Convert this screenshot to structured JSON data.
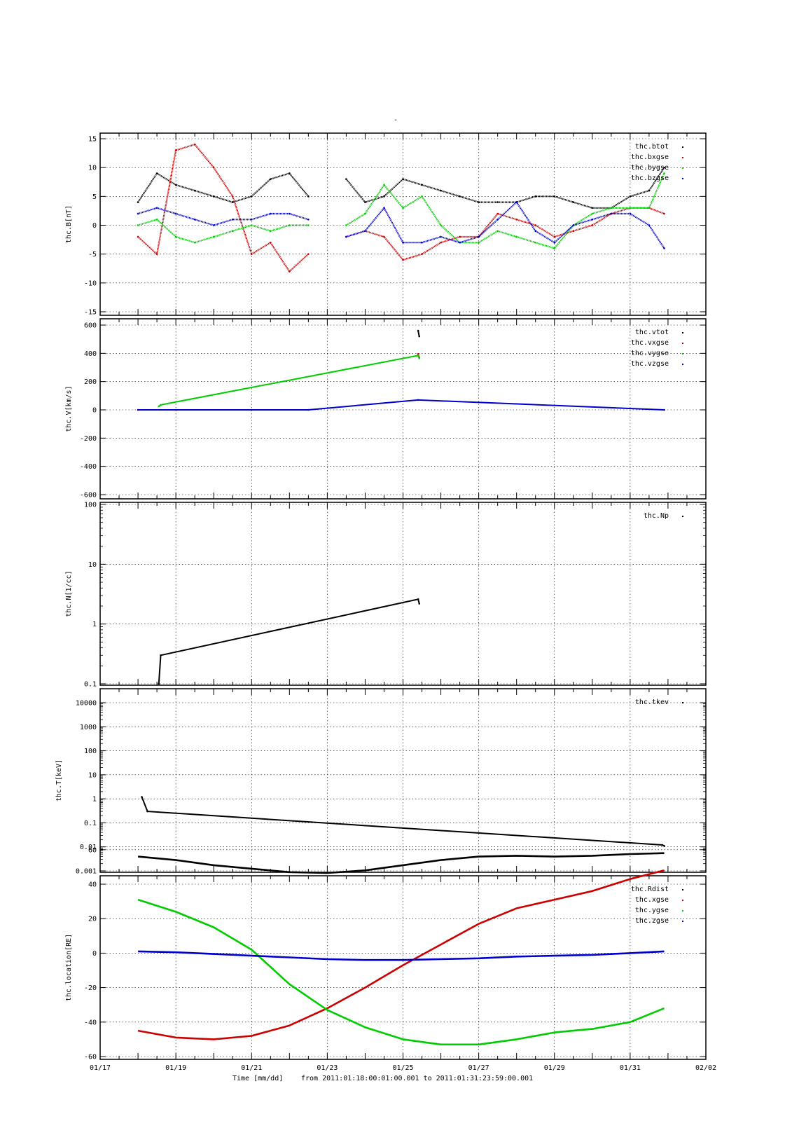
{
  "page_title": "-",
  "x_axis": {
    "label": "Time [mm/dd]",
    "range_text": "from 2011:01:18:00:01:00.001  to  2011:01:31:23:59:00.001",
    "ticks": [
      "01/17",
      "01/19",
      "01/21",
      "01/23",
      "01/25",
      "01/27",
      "01/29",
      "01/31",
      "02/02"
    ]
  },
  "colors": {
    "black": "#000000",
    "red": "#cc0000",
    "green": "#00cc00",
    "blue": "#0000cc",
    "grid": "#000000"
  },
  "chart_data": [
    {
      "type": "scatter",
      "ylabel": "thc.B[nT]",
      "ylim": [
        -15,
        16
      ],
      "yticks": [
        "15",
        "10",
        "5",
        "0",
        "-5",
        "-10",
        "-15"
      ],
      "grid": true,
      "legend_position": "top-right",
      "x_range": [
        "2011-01-17",
        "2011-02-02"
      ],
      "series": [
        {
          "name": "thc.btot",
          "color": "#000000",
          "x": [
            "01/18.0",
            "01/18.5",
            "01/19.0",
            "01/19.5",
            "01/20.0",
            "01/20.5",
            "01/21.0",
            "01/21.5",
            "01/22.0",
            "01/22.5",
            "01/23.0",
            "01/23.5",
            "01/24.0",
            "01/24.5",
            "01/25.0",
            "01/25.5",
            "01/26.0",
            "01/26.5",
            "01/27.0",
            "01/27.5",
            "01/28.0",
            "01/28.5",
            "01/29.0",
            "01/29.5",
            "01/30.0",
            "01/30.5",
            "01/31.0",
            "01/31.5",
            "01/31.9"
          ],
          "values": [
            4,
            9,
            7,
            6,
            5,
            4,
            5,
            8,
            9,
            5,
            null,
            8,
            4,
            5,
            8,
            7,
            6,
            5,
            4,
            4,
            4,
            5,
            5,
            4,
            3,
            3,
            5,
            6,
            10
          ]
        },
        {
          "name": "thc.bxgse",
          "color": "#cc0000",
          "x": [
            "01/18.0",
            "01/18.5",
            "01/19.0",
            "01/19.5",
            "01/20.0",
            "01/20.5",
            "01/21.0",
            "01/21.5",
            "01/22.0",
            "01/22.5",
            "01/23.0",
            "01/23.5",
            "01/24.0",
            "01/24.5",
            "01/25.0",
            "01/25.5",
            "01/26.0",
            "01/26.5",
            "01/27.0",
            "01/27.5",
            "01/28.0",
            "01/28.5",
            "01/29.0",
            "01/29.5",
            "01/30.0",
            "01/30.5",
            "01/31.0",
            "01/31.5",
            "01/31.9"
          ],
          "values": [
            -2,
            -5,
            13,
            14,
            10,
            5,
            -5,
            -3,
            -8,
            -5,
            null,
            -2,
            -1,
            -2,
            -6,
            -5,
            -3,
            -2,
            -2,
            2,
            1,
            0,
            -2,
            -1,
            0,
            2,
            3,
            3,
            2
          ]
        },
        {
          "name": "thc.bygse",
          "color": "#00cc00",
          "x": [
            "01/18.0",
            "01/18.5",
            "01/19.0",
            "01/19.5",
            "01/20.0",
            "01/20.5",
            "01/21.0",
            "01/21.5",
            "01/22.0",
            "01/22.5",
            "01/23.0",
            "01/23.5",
            "01/24.0",
            "01/24.5",
            "01/25.0",
            "01/25.5",
            "01/26.0",
            "01/26.5",
            "01/27.0",
            "01/27.5",
            "01/28.0",
            "01/28.5",
            "01/29.0",
            "01/29.5",
            "01/30.0",
            "01/30.5",
            "01/31.0",
            "01/31.5",
            "01/31.9"
          ],
          "values": [
            0,
            1,
            -2,
            -3,
            -2,
            -1,
            0,
            -1,
            0,
            0,
            null,
            0,
            2,
            7,
            3,
            5,
            0,
            -3,
            -3,
            -1,
            -2,
            -3,
            -4,
            0,
            2,
            3,
            3,
            3,
            9
          ]
        },
        {
          "name": "thc.bzgse",
          "color": "#0000cc",
          "x": [
            "01/18.0",
            "01/18.5",
            "01/19.0",
            "01/19.5",
            "01/20.0",
            "01/20.5",
            "01/21.0",
            "01/21.5",
            "01/22.0",
            "01/22.5",
            "01/23.0",
            "01/23.5",
            "01/24.0",
            "01/24.5",
            "01/25.0",
            "01/25.5",
            "01/26.0",
            "01/26.5",
            "01/27.0",
            "01/27.5",
            "01/28.0",
            "01/28.5",
            "01/29.0",
            "01/29.5",
            "01/30.0",
            "01/30.5",
            "01/31.0",
            "01/31.5",
            "01/31.9"
          ],
          "values": [
            2,
            3,
            2,
            1,
            0,
            1,
            1,
            2,
            2,
            1,
            null,
            -2,
            -1,
            3,
            -3,
            -3,
            -2,
            -3,
            -2,
            1,
            4,
            -1,
            -3,
            0,
            1,
            2,
            2,
            0,
            -4
          ]
        }
      ]
    },
    {
      "type": "scatter",
      "ylabel": "thc.V[km/s]",
      "ylim": [
        -600,
        600
      ],
      "yticks": [
        "600",
        "400",
        "200",
        "0",
        "-200",
        "-400",
        "-600"
      ],
      "grid": true,
      "legend_position": "top-right",
      "series": [
        {
          "name": "thc.vtot",
          "color": "#000000",
          "x": [
            "01/25.40",
            "01/25.43"
          ],
          "values": [
            560,
            520
          ]
        },
        {
          "name": "thc.vxgse",
          "color": "#cc0000",
          "x": [
            "01/25.40",
            "01/25.43"
          ],
          "values": [
            395,
            370
          ]
        },
        {
          "name": "thc.vygse",
          "color": "#00cc00",
          "x": [
            "01/18.55",
            "01/18.60",
            "01/25.40",
            "01/25.43"
          ],
          "values": [
            25,
            35,
            385,
            365
          ]
        },
        {
          "name": "thc.vzgse",
          "color": "#0000cc",
          "x": [
            "01/18.0",
            "01/22.5",
            "01/25.4",
            "01/31.9"
          ],
          "values": [
            0,
            0,
            70,
            0
          ]
        }
      ]
    },
    {
      "type": "scatter",
      "ylabel": "thc.N[1/cc]",
      "ylim": [
        0.1,
        100
      ],
      "scale": "log",
      "yticks": [
        "100",
        "10",
        "1",
        "0.1"
      ],
      "grid": true,
      "legend_position": "top-right",
      "series": [
        {
          "name": "thc.Np",
          "color": "#000000",
          "x": [
            "01/18.55",
            "01/18.60",
            "01/25.40",
            "01/25.43"
          ],
          "values": [
            0.1,
            0.3,
            2.6,
            2.2
          ]
        }
      ]
    },
    {
      "type": "scatter",
      "ylabel": "thc.T[keV]",
      "ylim": [
        0.001,
        20000
      ],
      "scale": "log",
      "yticks": [
        "10000",
        "1000",
        "100",
        "10",
        "1",
        "0.1",
        "0.01",
        "0.001"
      ],
      "grid": true,
      "legend_position": "top-right",
      "series": [
        {
          "name": "thc.tkev",
          "color": "#000000",
          "x": [
            "01/18.1",
            "01/18.25",
            "01/31.85",
            "01/31.9"
          ],
          "values": [
            1.2,
            0.3,
            0.012,
            0.011
          ]
        }
      ]
    },
    {
      "type": "line",
      "ylabel": "thc.location[RE]",
      "ylim": [
        -60,
        60
      ],
      "yticks": [
        "40",
        "20",
        "0",
        "-20",
        "-40",
        "-60"
      ],
      "extra_tick": "60",
      "grid": true,
      "legend_position": "top-right",
      "series": [
        {
          "name": "thc.Rdist",
          "color": "#000000",
          "x": [
            "01/18",
            "01/19",
            "01/20",
            "01/21",
            "01/22",
            "01/23",
            "01/24",
            "01/25",
            "01/26",
            "01/27",
            "01/28",
            "01/29",
            "01/30",
            "01/31",
            "01/31.9"
          ],
          "values": [
            56,
            54,
            51,
            49,
            47,
            46.5,
            48,
            51,
            54,
            56,
            56.5,
            56,
            56.5,
            57.5,
            58
          ]
        },
        {
          "name": "thc.xgse",
          "color": "#cc0000",
          "x": [
            "01/18",
            "01/19",
            "01/20",
            "01/21",
            "01/22",
            "01/23",
            "01/24",
            "01/25",
            "01/26",
            "01/27",
            "01/28",
            "01/29",
            "01/30",
            "01/31",
            "01/31.9"
          ],
          "values": [
            -45,
            -49,
            -50,
            -48,
            -42,
            -32,
            -20,
            -7,
            5,
            17,
            26,
            31,
            36,
            43,
            48
          ]
        },
        {
          "name": "thc.ygse",
          "color": "#00cc00",
          "x": [
            "01/18",
            "01/19",
            "01/20",
            "01/21",
            "01/22",
            "01/23",
            "01/24",
            "01/25",
            "01/26",
            "01/27",
            "01/28",
            "01/29",
            "01/30",
            "01/31",
            "01/31.9"
          ],
          "values": [
            31,
            24,
            15,
            2,
            -18,
            -33,
            -43,
            -50,
            -53,
            -53,
            -50,
            -46,
            -44,
            -40,
            -32
          ]
        },
        {
          "name": "thc.zgse",
          "color": "#0000cc",
          "x": [
            "01/18",
            "01/19",
            "01/20",
            "01/21",
            "01/22",
            "01/23",
            "01/24",
            "01/25",
            "01/26",
            "01/27",
            "01/28",
            "01/29",
            "01/30",
            "01/31",
            "01/31.9"
          ],
          "values": [
            1,
            0.5,
            -0.5,
            -1.5,
            -2.5,
            -3.5,
            -4,
            -4,
            -3.5,
            -3,
            -2,
            -1.5,
            -1,
            0,
            1
          ]
        }
      ]
    }
  ]
}
